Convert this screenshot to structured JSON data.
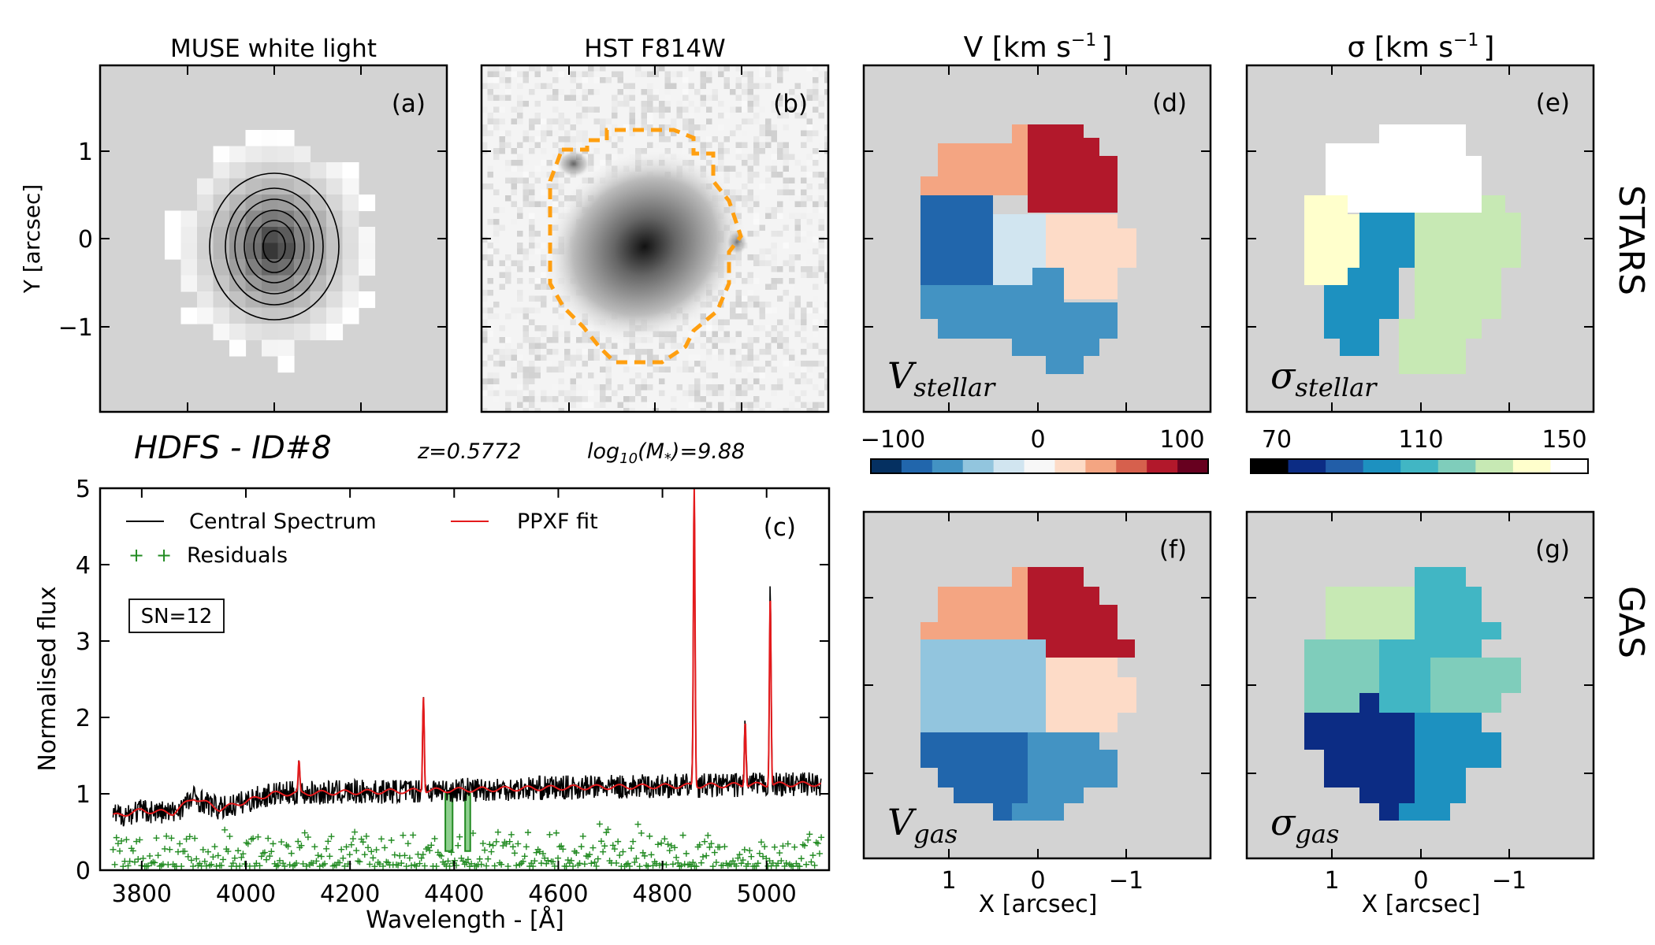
{
  "panels": {
    "a": {
      "title": "MUSE white light",
      "label": "(a)"
    },
    "b": {
      "title": "HST F814W",
      "label": "(b)"
    },
    "c": {
      "label": "(c)"
    },
    "d": {
      "title": "V [km s",
      "title_sup": "−1",
      "title_end": "]",
      "label": "(d)",
      "overlay_main": "V",
      "overlay_sub": "stellar"
    },
    "e": {
      "title": "σ [km s",
      "title_sup": "−1",
      "title_end": "]",
      "label": "(e)",
      "overlay_main": "σ",
      "overlay_sub": "stellar"
    },
    "f": {
      "label": "(f)",
      "overlay_main": "V",
      "overlay_sub": "gas"
    },
    "g": {
      "label": "(g)",
      "overlay_main": "σ",
      "overlay_sub": "gas"
    }
  },
  "row_labels": {
    "stars": "STARS",
    "gas": "GAS"
  },
  "header": {
    "galaxy": "HDFS - ID#8",
    "redshift": "z=0.5772",
    "mass_pre": "log",
    "mass_sub": "10",
    "mass_mid": "(M",
    "mass_star": "*",
    "mass_end": ")=9.88"
  },
  "map_axes": {
    "ylabel": "Y [arcsec]",
    "xlabel": "X [arcsec]",
    "y_ticks": [
      "1",
      "0",
      "−1"
    ],
    "x_ticks": [
      "1",
      "0",
      "−1"
    ]
  },
  "colorbars": {
    "velocity": {
      "ticks": [
        "−100",
        "0",
        "100"
      ],
      "colors": [
        "#053061",
        "#2166ac",
        "#4393c3",
        "#92c5de",
        "#d1e5f0",
        "#f7f7f7",
        "#fddbc7",
        "#f4a582",
        "#d6604d",
        "#b2182b",
        "#67001f"
      ]
    },
    "dispersion": {
      "ticks": [
        "70",
        "110",
        "150"
      ],
      "colors": [
        "#000000",
        "#0c2c84",
        "#225ea8",
        "#1d91c0",
        "#41b6c4",
        "#7fcdbb",
        "#c7e9b4",
        "#ffffcc",
        "#ffffff"
      ]
    }
  },
  "chart_data": {
    "type": "line",
    "xlabel": "Wavelength - [Å]",
    "ylabel": "Normalised flux",
    "xlim": [
      3720,
      5120
    ],
    "ylim": [
      0,
      5
    ],
    "x_ticks": [
      "3800",
      "4000",
      "4200",
      "4400",
      "4600",
      "4800",
      "5000"
    ],
    "y_ticks": [
      "0",
      "1",
      "2",
      "3",
      "4",
      "5"
    ],
    "sn_box": "SN=12",
    "legend": [
      "Central Spectrum",
      "PPXF fit",
      "Residuals"
    ],
    "series": [
      {
        "name": "Central Spectrum",
        "color": "#000000",
        "baseline_x": [
          3740,
          3800,
          3860,
          3900,
          3950,
          4000,
          4050,
          4200,
          4400,
          4600,
          4800,
          5000,
          5100
        ],
        "baseline_y": [
          0.7,
          0.78,
          0.75,
          0.95,
          0.8,
          0.9,
          1.0,
          1.02,
          1.05,
          1.08,
          1.1,
          1.12,
          1.13
        ]
      },
      {
        "name": "PPXF fit",
        "color": "#e41a1c",
        "emission_lines": [
          {
            "x": 4102,
            "peak": 1.5
          },
          {
            "x": 4341,
            "peak": 2.35
          },
          {
            "x": 4861,
            "peak": 5.0
          },
          {
            "x": 4959,
            "peak": 1.95
          },
          {
            "x": 5007,
            "peak": 3.6
          }
        ]
      },
      {
        "name": "Residuals",
        "color": "#228b22",
        "level": [
          0.05,
          0.5
        ]
      }
    ],
    "masked_regions": [
      [
        4380,
        4400
      ],
      [
        4418,
        4434
      ]
    ]
  }
}
